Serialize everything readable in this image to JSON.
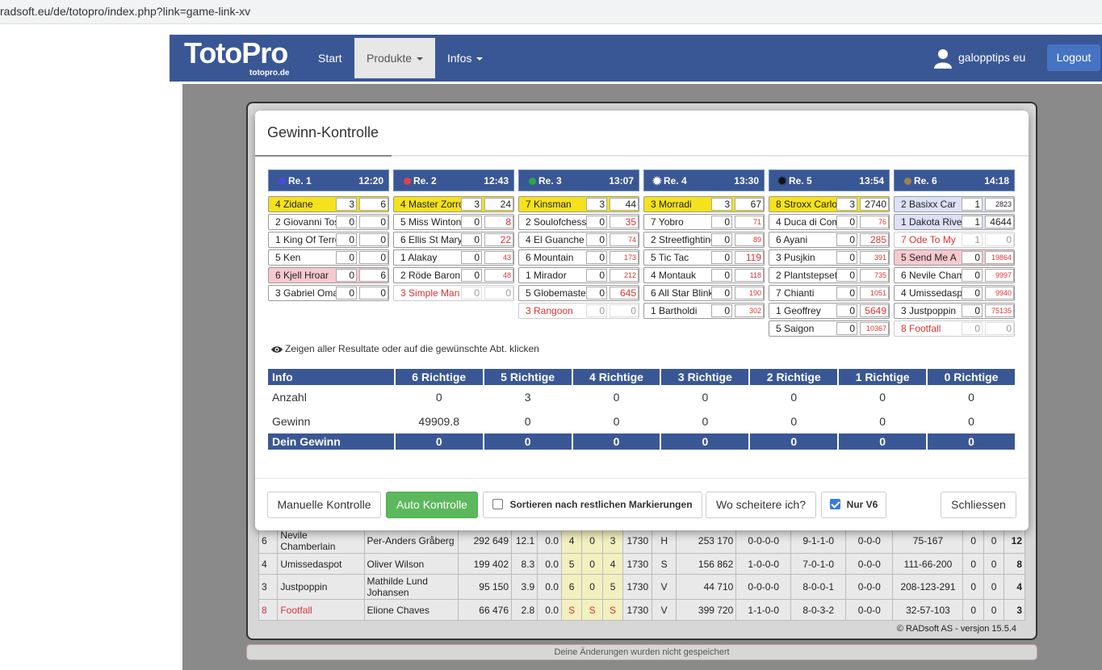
{
  "browser": {
    "url": "radsoft.eu/de/totopro/index.php?link=game-link-xv"
  },
  "navbar": {
    "logo": "TotoPro",
    "logo_sub": "totopro.de",
    "start": "Start",
    "produkte": "Produkte",
    "infos": "Infos",
    "user": "galopptips eu",
    "logout": "Logout"
  },
  "modal": {
    "title": "Gewinn-Kontrolle",
    "hint": "Zeigen aller Resultate oder auf die gewünschte Abt. klicken",
    "races": [
      {
        "name": "Re. 1",
        "time": "12:20",
        "dot_color": "#4a4ae0",
        "marker": "dot",
        "horses": [
          {
            "name": "4 Zidane",
            "v1": "3",
            "v2": "6",
            "style": "win"
          },
          {
            "name": "2 Giovanni Tosi",
            "v1": "0",
            "v2": "0",
            "style": ""
          },
          {
            "name": "1 King Of Terror",
            "v1": "0",
            "v2": "0",
            "style": ""
          },
          {
            "name": "5 Ken",
            "v1": "0",
            "v2": "0",
            "style": ""
          },
          {
            "name": "6 Kjell Hroar",
            "v1": "0",
            "v2": "6",
            "style": "pink"
          },
          {
            "name": "3 Gabriel Omar",
            "v1": "0",
            "v2": "0",
            "style": ""
          }
        ]
      },
      {
        "name": "Re. 2",
        "time": "12:43",
        "dot_color": "#e04050",
        "marker": "dot",
        "horses": [
          {
            "name": "4 Master Zorro",
            "v1": "3",
            "v2": "24",
            "style": "win"
          },
          {
            "name": "5 Miss Winton",
            "v1": "0",
            "v2": "8",
            "style": "",
            "red": true
          },
          {
            "name": "6 Ellis St Mary",
            "v1": "0",
            "v2": "22",
            "style": "",
            "red": true
          },
          {
            "name": "1 Alakay",
            "v1": "0",
            "v2": "43",
            "style": "",
            "red": true,
            "small": true
          },
          {
            "name": "2 Röde Baron",
            "v1": "0",
            "v2": "48",
            "style": "",
            "red": true,
            "small": true
          },
          {
            "name": "3 Simple Man",
            "v1": "0",
            "v2": "0",
            "style": "scr"
          }
        ]
      },
      {
        "name": "Re. 3",
        "time": "13:07",
        "dot_color": "#2aa84a",
        "marker": "dot",
        "horses": [
          {
            "name": "7 Kinsman",
            "v1": "3",
            "v2": "44",
            "style": "win"
          },
          {
            "name": "2 Soulofchess",
            "v1": "0",
            "v2": "35",
            "style": "",
            "red": true
          },
          {
            "name": "4 El Guanche",
            "v1": "0",
            "v2": "74",
            "style": "",
            "red": true,
            "small": true
          },
          {
            "name": "6 Mountain",
            "v1": "0",
            "v2": "173",
            "style": "",
            "red": true,
            "small": true
          },
          {
            "name": "1 Mirador",
            "v1": "0",
            "v2": "212",
            "style": "",
            "red": true,
            "small": true
          },
          {
            "name": "5 Globemaster",
            "v1": "0",
            "v2": "645",
            "style": "",
            "red": true
          },
          {
            "name": "3 Rangoon",
            "v1": "0",
            "v2": "0",
            "style": "scr"
          }
        ]
      },
      {
        "name": "Re. 4",
        "time": "13:30",
        "dot_color": "#ffffff",
        "marker": "star",
        "horses": [
          {
            "name": "3 Morradi",
            "v1": "3",
            "v2": "67",
            "style": "win"
          },
          {
            "name": "7 Yobro",
            "v1": "0",
            "v2": "71",
            "style": "",
            "red": true,
            "small": true
          },
          {
            "name": "2 Streetfighting",
            "v1": "0",
            "v2": "89",
            "style": "",
            "red": true,
            "small": true
          },
          {
            "name": "5 Tic Tac",
            "v1": "0",
            "v2": "119",
            "style": "",
            "red": true
          },
          {
            "name": "4 Montauk",
            "v1": "0",
            "v2": "118",
            "style": "",
            "red": true,
            "small": true
          },
          {
            "name": "6 All Star Blink",
            "v1": "0",
            "v2": "190",
            "style": "",
            "red": true,
            "small": true
          },
          {
            "name": "1 Bartholdi",
            "v1": "0",
            "v2": "302",
            "style": "",
            "red": true,
            "small": true
          }
        ]
      },
      {
        "name": "Re. 5",
        "time": "13:54",
        "dot_color": "#111111",
        "marker": "star",
        "horses": [
          {
            "name": "8 Stroxx Carlos",
            "v1": "3",
            "v2": "2740",
            "style": "win"
          },
          {
            "name": "4 Duca di Como",
            "v1": "0",
            "v2": "76",
            "style": "",
            "red": true,
            "small": true
          },
          {
            "name": "6 Ayani",
            "v1": "0",
            "v2": "285",
            "style": "",
            "red": true
          },
          {
            "name": "3 Pusjkin",
            "v1": "0",
            "v2": "391",
            "style": "",
            "red": true,
            "small": true
          },
          {
            "name": "2 Plantstepset",
            "v1": "0",
            "v2": "735",
            "style": "",
            "red": true,
            "small": true
          },
          {
            "name": "7 Chianti",
            "v1": "0",
            "v2": "1051",
            "style": "",
            "red": true,
            "small": true
          },
          {
            "name": "1 Geoffrey",
            "v1": "0",
            "v2": "5649",
            "style": "",
            "red": true
          },
          {
            "name": "5 Saigon",
            "v1": "0",
            "v2": "10367",
            "style": "",
            "red": true,
            "small": true
          }
        ]
      },
      {
        "name": "Re. 6",
        "time": "14:18",
        "dot_color": "#a08050",
        "marker": "dot",
        "horses": [
          {
            "name": "2 Basixx Car",
            "v1": "1",
            "v2": "2823",
            "style": "blue",
            "small": true
          },
          {
            "name": "1 Dakota River",
            "v1": "1",
            "v2": "4644",
            "style": "blue"
          },
          {
            "name": "7 Ode To My",
            "v1": "1",
            "v2": "0",
            "style": "scr"
          },
          {
            "name": "5 Send Me A",
            "v1": "0",
            "v2": "19864",
            "style": "pink",
            "red": true,
            "small": true
          },
          {
            "name": "6 Nevile Chamberlain",
            "v1": "0",
            "v2": "9997",
            "style": "",
            "red": true,
            "small": true
          },
          {
            "name": "4 Umissedaspot",
            "v1": "0",
            "v2": "9940",
            "style": "",
            "red": true,
            "small": true
          },
          {
            "name": "3 Justpoppin",
            "v1": "0",
            "v2": "75135",
            "style": "",
            "red": true,
            "small": true
          },
          {
            "name": "8 Footfall",
            "v1": "0",
            "v2": "0",
            "style": "scr"
          }
        ]
      }
    ],
    "results": {
      "headers": [
        "Info",
        "6 Richtige",
        "5 Richtige",
        "4 Richtige",
        "3 Richtige",
        "2 Richtige",
        "1 Richtige",
        "0 Richtige"
      ],
      "rows": [
        [
          "Anzahl",
          "0",
          "3",
          "0",
          "0",
          "0",
          "0",
          "0"
        ],
        [
          "Gewinn",
          "49909.8",
          "0",
          "0",
          "0",
          "0",
          "0",
          "0"
        ]
      ],
      "footer": [
        "Dein Gewinn",
        "0",
        "0",
        "0",
        "0",
        "0",
        "0",
        "0"
      ]
    },
    "buttons": {
      "manual": "Manuelle Kontrolle",
      "auto": "Auto Kontrolle",
      "sort": "Sortieren nach restlichen Markierungen",
      "where": "Wo scheitere ich?",
      "v6": "Nur V6",
      "close": "Schliessen"
    }
  },
  "background_table": {
    "rows": [
      [
        "6",
        "Nevile Chamberlain",
        "Per-Anders Gråberg",
        "292 649",
        "12.1",
        "0.0",
        "4",
        "0",
        "3",
        "1730",
        "H",
        "253 170",
        "0-0-0-0",
        "9-1-1-0",
        "0-0-0",
        "75-167",
        "0",
        "0",
        "12"
      ],
      [
        "4",
        "Umissedaspot",
        "Oliver Wilson",
        "199 402",
        "8.3",
        "0.0",
        "5",
        "0",
        "4",
        "1730",
        "S",
        "156 862",
        "1-0-0-0",
        "7-0-1-0",
        "0-0-0",
        "111-66-200",
        "0",
        "0",
        "8"
      ],
      [
        "3",
        "Justpoppin",
        "Mathilde Lund Johansen",
        "95 150",
        "3.9",
        "0.0",
        "6",
        "0",
        "5",
        "1730",
        "V",
        "44 710",
        "0-0-0-0",
        "8-0-0-1",
        "0-0-0",
        "208-123-291",
        "0",
        "0",
        "4"
      ],
      [
        "8",
        "Footfall",
        "Elione Chaves",
        "66 476",
        "2.8",
        "0.0",
        "S",
        "S",
        "S",
        "1730",
        "V",
        "399 720",
        "1-1-0-0",
        "8-0-3-2",
        "0-0-0",
        "32-57-103",
        "0",
        "0",
        "3"
      ]
    ],
    "version": "© RADsoft AS - versjon 15.5.4",
    "unsaved": "Deine Änderungen wurden nicht gespeichert"
  }
}
